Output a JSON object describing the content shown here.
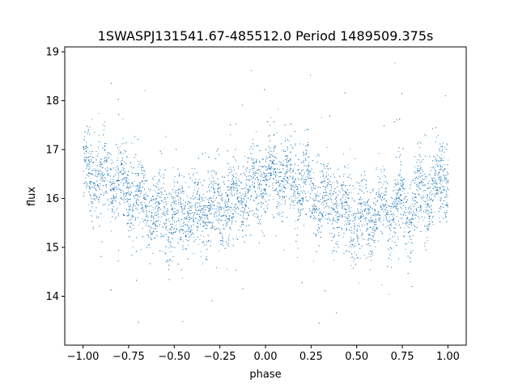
{
  "chart_data": {
    "type": "scatter",
    "title": "1SWASPJ131541.67-485512.0 Period 1489509.375s",
    "xlabel": "phase",
    "ylabel": "flux",
    "xlim": [
      -1.1,
      1.1
    ],
    "ylim": [
      13.0,
      19.1
    ],
    "xticks": [
      -1.0,
      -0.75,
      -0.5,
      -0.25,
      0.0,
      0.25,
      0.5,
      0.75,
      1.0
    ],
    "xtick_labels": [
      "−1.00",
      "−0.75",
      "−0.50",
      "−0.25",
      "0.00",
      "0.25",
      "0.50",
      "0.75",
      "1.00"
    ],
    "yticks": [
      14,
      15,
      16,
      17,
      18,
      19
    ],
    "ytick_labels": [
      "14",
      "15",
      "16",
      "17",
      "18",
      "19"
    ],
    "grid": false,
    "marker_color": "#1f77b4",
    "series": [
      {
        "values_description_free": true,
        "x": [
          -1.0,
          -0.9,
          -0.8,
          -0.7,
          -0.6,
          -0.5,
          -0.4,
          -0.3,
          -0.2,
          -0.1,
          0.0,
          0.1,
          0.2,
          0.3,
          0.4,
          0.5,
          0.6,
          0.7,
          0.8,
          0.9,
          1.0
        ],
        "y": [
          16.6,
          16.4,
          16.3,
          16.0,
          15.8,
          15.6,
          15.7,
          15.8,
          15.9,
          16.1,
          16.5,
          16.4,
          16.3,
          16.0,
          15.8,
          15.6,
          15.7,
          15.8,
          15.9,
          16.1,
          16.5
        ]
      }
    ]
  }
}
